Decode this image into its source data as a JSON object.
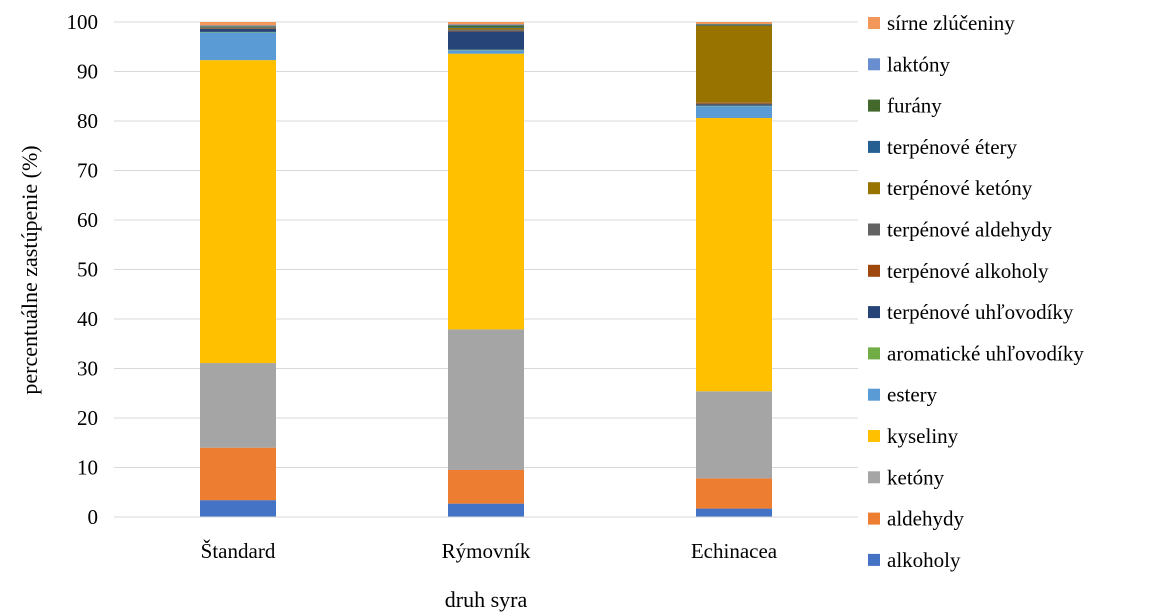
{
  "chart_data": {
    "type": "bar",
    "stacked": true,
    "title": "",
    "xlabel": "druh syra",
    "ylabel": "percentuálne zastúpenie (%)",
    "ylim": [
      0,
      100
    ],
    "yticks": [
      0,
      10,
      20,
      30,
      40,
      50,
      60,
      70,
      80,
      90,
      100
    ],
    "grid": true,
    "legend_position": "right",
    "categories": [
      "Štandard",
      "Rýmovník",
      "Echinacea"
    ],
    "series": [
      {
        "name": "alkoholy",
        "color": "#4472c4",
        "values": [
          3.4,
          2.7,
          1.7
        ]
      },
      {
        "name": "aldehydy",
        "color": "#ed7d31",
        "values": [
          10.6,
          6.8,
          6.1
        ]
      },
      {
        "name": "ketóny",
        "color": "#a5a5a5",
        "values": [
          17.1,
          28.4,
          17.6
        ]
      },
      {
        "name": "kyseliny",
        "color": "#ffc000",
        "values": [
          61.2,
          55.7,
          55.2
        ]
      },
      {
        "name": "estery",
        "color": "#5b9bd5",
        "values": [
          5.6,
          0.7,
          2.4
        ]
      },
      {
        "name": "aromatické uhľovodíky",
        "color": "#70ad47",
        "values": [
          0.1,
          0.1,
          0.1
        ]
      },
      {
        "name": "terpénové uhľovodíky",
        "color": "#264478",
        "values": [
          0.6,
          3.7,
          0.3
        ]
      },
      {
        "name": "terpénové alkoholy",
        "color": "#9e480e",
        "values": [
          0.1,
          0.1,
          0.2
        ]
      },
      {
        "name": "terpénové aldehydy",
        "color": "#636363",
        "values": [
          0.1,
          0.3,
          0.1
        ]
      },
      {
        "name": "terpénové ketóny",
        "color": "#997300",
        "values": [
          0.1,
          0.3,
          15.6
        ]
      },
      {
        "name": "terpénové étery",
        "color": "#255e91",
        "values": [
          0.1,
          0.1,
          0.1
        ]
      },
      {
        "name": "furány",
        "color": "#43682b",
        "values": [
          0.1,
          0.4,
          0.1
        ]
      },
      {
        "name": "laktóny",
        "color": "#698ed0",
        "values": [
          0.2,
          0.2,
          0.1
        ]
      },
      {
        "name": "sírne zlúčeniny",
        "color": "#f1975a",
        "values": [
          0.7,
          0.5,
          0.4
        ]
      }
    ]
  }
}
